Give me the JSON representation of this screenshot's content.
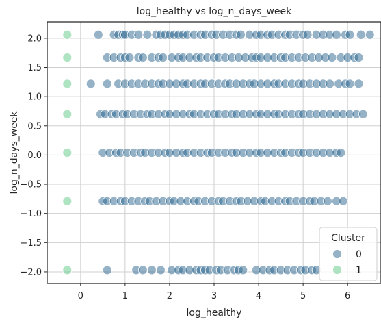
{
  "chart_data": {
    "type": "scatter",
    "title": "log_healthy vs log_n_days_week",
    "xlabel": "log_healthy",
    "ylabel": "log_n_days_week",
    "xlim": [
      -0.75,
      6.75
    ],
    "ylim": [
      -2.2,
      2.28
    ],
    "xticks": [
      0,
      1,
      2,
      3,
      4,
      5,
      6
    ],
    "yticks": [
      -2.0,
      -1.5,
      -1.0,
      -0.5,
      0.0,
      0.5,
      1.0,
      1.5,
      2.0
    ],
    "ytick_labels": [
      "−2.0",
      "−1.5",
      "−1.0",
      "−0.5",
      "0.0",
      "0.5",
      "1.0",
      "1.5",
      "2.0"
    ],
    "grid": true,
    "legend": {
      "title": "Cluster",
      "position": "bottom-right",
      "entries": [
        {
          "label": "0",
          "color": "#2c6690"
        },
        {
          "label": "1",
          "color": "#5fc987"
        }
      ]
    },
    "series": [
      {
        "name": "0",
        "color": "#2c6690",
        "rows": [
          {
            "y": 2.06,
            "x": [
              0.4,
              0.75,
              0.85,
              0.95,
              1.0,
              1.15,
              1.3,
              1.5,
              1.7,
              1.8,
              1.9,
              2.0,
              2.1,
              2.2,
              2.3,
              2.4,
              2.55,
              2.7,
              2.8,
              2.95,
              3.05,
              3.2,
              3.35,
              3.5,
              3.6,
              3.8,
              3.95,
              4.05,
              4.2,
              4.3,
              4.45,
              4.6,
              4.7,
              4.85,
              5.0,
              5.1,
              5.3,
              5.45,
              5.6,
              5.75,
              5.95,
              6.05,
              6.3,
              6.5
            ]
          },
          {
            "y": 1.67,
            "x": [
              0.6,
              0.75,
              0.9,
              1.0,
              1.1,
              1.3,
              1.4,
              1.6,
              1.75,
              1.85,
              2.05,
              2.2,
              2.3,
              2.45,
              2.6,
              2.7,
              2.85,
              3.0,
              3.1,
              3.25,
              3.4,
              3.55,
              3.7,
              3.85,
              3.95,
              4.05,
              4.2,
              4.35,
              4.5,
              4.6,
              4.75,
              4.9,
              5.05,
              5.2,
              5.35,
              5.5,
              5.65,
              5.85,
              6.0,
              6.15,
              6.25
            ]
          },
          {
            "y": 1.22,
            "x": [
              0.23,
              0.6,
              0.85,
              1.0,
              1.15,
              1.3,
              1.45,
              1.6,
              1.75,
              1.85,
              2.0,
              2.15,
              2.3,
              2.4,
              2.55,
              2.7,
              2.8,
              2.95,
              3.1,
              3.25,
              3.35,
              3.5,
              3.65,
              3.8,
              3.9,
              4.05,
              4.2,
              4.35,
              4.45,
              4.6,
              4.75,
              4.9,
              5.0,
              5.15,
              5.3,
              5.45,
              5.6,
              5.8,
              5.95,
              6.05,
              6.25
            ]
          },
          {
            "y": 0.7,
            "x": [
              0.45,
              0.55,
              0.7,
              0.8,
              0.95,
              1.05,
              1.2,
              1.35,
              1.5,
              1.6,
              1.75,
              1.9,
              2.0,
              2.15,
              2.3,
              2.45,
              2.55,
              2.7,
              2.85,
              3.0,
              3.1,
              3.25,
              3.4,
              3.5,
              3.65,
              3.8,
              3.95,
              4.05,
              4.2,
              4.35,
              4.45,
              4.6,
              4.75,
              4.9,
              5.0,
              5.15,
              5.3,
              5.45,
              5.6,
              5.75,
              5.9,
              6.05,
              6.2,
              6.35
            ]
          },
          {
            "y": 0.04,
            "x": [
              0.5,
              0.65,
              0.8,
              0.9,
              1.05,
              1.2,
              1.35,
              1.45,
              1.6,
              1.75,
              1.9,
              2.0,
              2.15,
              2.3,
              2.4,
              2.55,
              2.7,
              2.85,
              2.95,
              3.1,
              3.25,
              3.4,
              3.5,
              3.65,
              3.8,
              3.95,
              4.05,
              4.2,
              4.35,
              4.5,
              4.6,
              4.75,
              4.9,
              5.0,
              5.15,
              5.3,
              5.45,
              5.6,
              5.75,
              5.85
            ]
          },
          {
            "y": -0.79,
            "x": [
              0.5,
              0.6,
              0.75,
              0.9,
              1.0,
              1.15,
              1.3,
              1.45,
              1.55,
              1.7,
              1.85,
              2.0,
              2.1,
              2.25,
              2.4,
              2.55,
              2.65,
              2.8,
              2.95,
              3.1,
              3.2,
              3.35,
              3.5,
              3.6,
              3.75,
              3.9,
              4.05,
              4.15,
              4.3,
              4.45,
              4.6,
              4.7,
              4.85,
              5.0,
              5.15,
              5.25,
              5.4,
              5.55,
              5.75,
              5.9
            ]
          },
          {
            "y": -1.97,
            "x": [
              0.6,
              1.25,
              1.4,
              1.6,
              1.8,
              2.05,
              2.2,
              2.3,
              2.45,
              2.6,
              2.7,
              2.8,
              2.9,
              3.05,
              3.15,
              3.3,
              3.45,
              3.55,
              3.65,
              3.95,
              4.1,
              4.25,
              4.35,
              4.5,
              4.65,
              4.8,
              4.95,
              5.05,
              5.2,
              5.3
            ]
          }
        ]
      },
      {
        "name": "1",
        "color": "#5fc987",
        "points": [
          [
            -0.3,
            2.06
          ],
          [
            -0.3,
            1.67
          ],
          [
            -0.3,
            1.22
          ],
          [
            -0.3,
            0.7
          ],
          [
            -0.3,
            0.04
          ],
          [
            -0.3,
            -0.79
          ],
          [
            -0.3,
            -1.97
          ]
        ]
      }
    ]
  }
}
